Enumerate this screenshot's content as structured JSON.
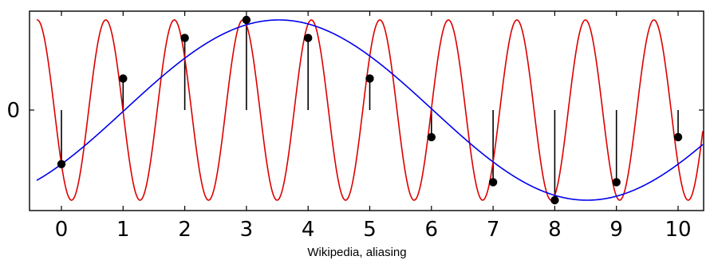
{
  "chart_data": {
    "type": "line",
    "title": "",
    "xlabel": "",
    "ylabel": "",
    "xlim": [
      -0.5,
      10.4
    ],
    "ylim": [
      -1.1,
      1.1
    ],
    "x_ticks": [
      "0",
      "1",
      "2",
      "3",
      "4",
      "5",
      "6",
      "7",
      "8",
      "9",
      "10"
    ],
    "y_ticks": [
      "0"
    ],
    "grid": false,
    "legend": "none",
    "series": [
      {
        "kind": "line",
        "color": "#dd0000",
        "formula": "-sin(2*pi*0.9*x + 0.6435)",
        "x_range": [
          -0.4,
          10.4
        ]
      },
      {
        "kind": "line",
        "color": "#0000ee",
        "formula": "sin(2*pi*0.1*x - 0.6435)",
        "x_range": [
          -0.4,
          10.4
        ]
      },
      {
        "kind": "stem",
        "color": "#000000",
        "x": [
          0,
          1,
          2,
          3,
          4,
          5,
          6,
          7,
          8,
          9,
          10
        ],
        "y": [
          -0.6,
          0.35,
          0.8,
          1.0,
          0.8,
          0.35,
          -0.3,
          -0.8,
          -1.0,
          -0.8,
          -0.3
        ]
      }
    ]
  },
  "caption": "Wikipedia, aliasing"
}
